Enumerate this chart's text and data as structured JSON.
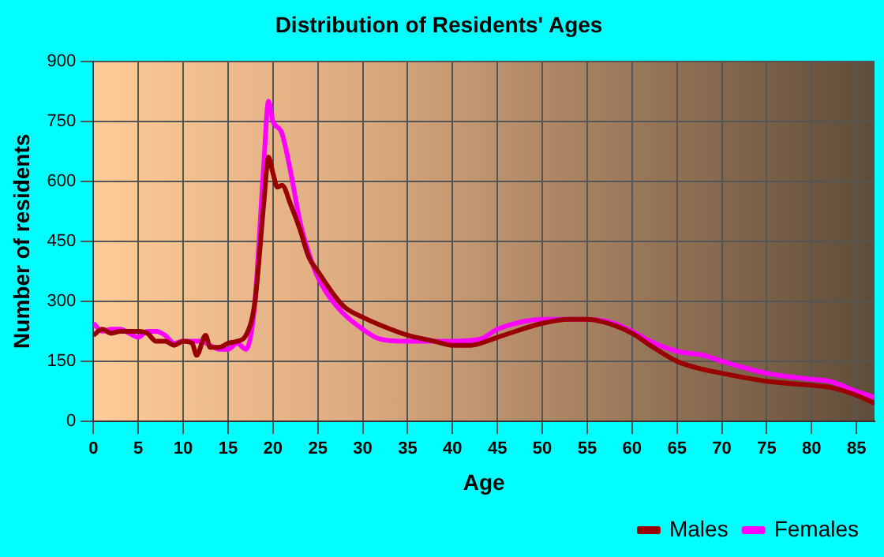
{
  "chart_data": {
    "type": "line",
    "title": "Distribution of Residents' Ages",
    "xlabel": "Age",
    "ylabel": "Number of residents",
    "xlim": [
      0,
      87
    ],
    "xticks": [
      0,
      5,
      10,
      15,
      20,
      25,
      30,
      35,
      40,
      45,
      50,
      55,
      60,
      65,
      70,
      75,
      80,
      85
    ],
    "ylim": [
      0,
      900
    ],
    "yticks": [
      0,
      150,
      300,
      450,
      600,
      750,
      900
    ],
    "grid": true,
    "legend": "bottom right",
    "marker": "none",
    "line_style": "solid",
    "series": [
      {
        "name": "Males",
        "color": "#990000",
        "x": [
          0,
          1,
          2,
          3,
          4,
          5,
          6,
          7,
          8,
          9,
          10,
          11,
          11.5,
          12.5,
          13,
          14,
          15,
          16,
          17,
          18,
          19,
          19.5,
          20,
          20.5,
          21,
          22,
          23,
          24,
          25,
          27,
          28,
          30,
          32,
          35,
          38,
          40,
          42,
          45,
          50,
          53,
          55,
          58,
          60,
          62,
          65,
          67,
          70,
          75,
          80,
          82,
          85,
          87
        ],
        "values": [
          215,
          230,
          220,
          225,
          225,
          225,
          220,
          200,
          200,
          190,
          200,
          195,
          165,
          215,
          185,
          185,
          195,
          200,
          215,
          300,
          550,
          660,
          620,
          585,
          590,
          540,
          480,
          410,
          375,
          310,
          285,
          260,
          240,
          215,
          200,
          190,
          190,
          210,
          245,
          255,
          255,
          240,
          220,
          190,
          150,
          135,
          120,
          100,
          90,
          85,
          65,
          45
        ]
      },
      {
        "name": "Females",
        "color": "#ff00ff",
        "x": [
          0,
          1,
          2,
          3,
          4,
          5,
          6,
          7,
          8,
          9,
          10,
          12,
          13,
          14,
          15,
          16,
          17,
          17.5,
          18,
          19,
          19.5,
          20,
          21,
          22,
          23,
          24,
          25,
          27,
          30,
          32,
          35,
          40,
          43,
          45,
          48,
          50,
          53,
          55,
          58,
          60,
          62,
          65,
          68,
          70,
          75,
          80,
          82,
          85,
          87
        ],
        "values": [
          245,
          225,
          230,
          230,
          220,
          210,
          225,
          225,
          215,
          195,
          200,
          200,
          190,
          180,
          180,
          195,
          180,
          210,
          300,
          650,
          800,
          750,
          720,
          620,
          500,
          420,
          360,
          290,
          230,
          205,
          200,
          200,
          205,
          230,
          250,
          255,
          255,
          255,
          245,
          225,
          200,
          175,
          165,
          150,
          120,
          105,
          100,
          75,
          60
        ]
      }
    ]
  }
}
